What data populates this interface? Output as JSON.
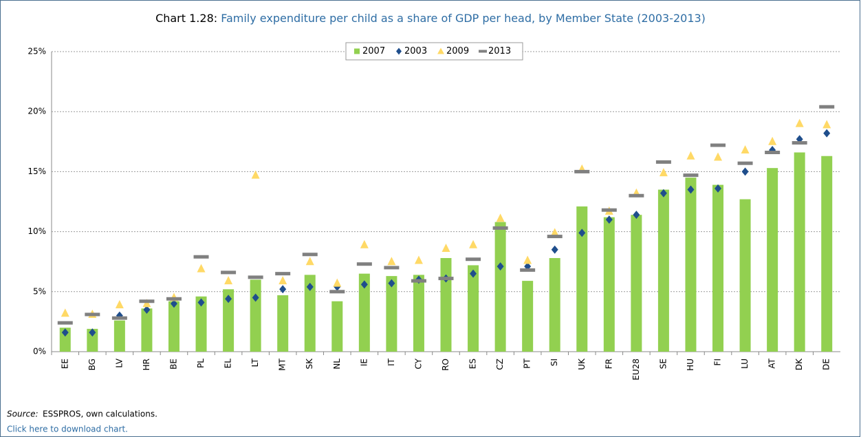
{
  "chart_data": {
    "type": "bar",
    "chart_number": "Chart 1.28",
    "title": "Family expenditure per child as a share of GDP per head, by Member State (2003-2013)",
    "categories": [
      "EE",
      "BG",
      "LV",
      "HR",
      "BE",
      "PL",
      "EL",
      "LT",
      "MT",
      "SK",
      "NL",
      "IE",
      "IT",
      "CY",
      "RO",
      "ES",
      "CZ",
      "PT",
      "SI",
      "UK",
      "FR",
      "EU28",
      "SE",
      "HU",
      "FI",
      "LU",
      "AT",
      "DK",
      "DE"
    ],
    "series": [
      {
        "name": "2007",
        "type": "bar",
        "color": "#92d050",
        "values": [
          2.0,
          1.9,
          2.6,
          3.6,
          4.2,
          4.6,
          5.2,
          6.0,
          4.7,
          6.4,
          4.2,
          6.5,
          6.3,
          6.4,
          7.8,
          7.2,
          10.8,
          5.9,
          7.8,
          12.1,
          11.2,
          11.4,
          13.5,
          14.5,
          13.9,
          12.7,
          15.3,
          16.6,
          16.3
        ]
      },
      {
        "name": "2003",
        "type": "diamond",
        "color": "#1f4e8c",
        "values": [
          1.6,
          1.6,
          3.0,
          3.5,
          4.0,
          4.1,
          4.4,
          4.5,
          5.2,
          5.4,
          5.4,
          5.6,
          5.7,
          6.0,
          6.1,
          6.5,
          7.1,
          7.1,
          8.5,
          9.9,
          11.0,
          11.4,
          13.2,
          13.5,
          13.6,
          15.0,
          16.8,
          17.7,
          18.2
        ]
      },
      {
        "name": "2009",
        "type": "triangle",
        "color": "#ffd966",
        "values": [
          3.2,
          3.1,
          3.9,
          4.0,
          4.5,
          6.9,
          5.9,
          14.7,
          5.9,
          7.5,
          5.7,
          8.9,
          7.5,
          7.6,
          8.6,
          8.9,
          11.1,
          7.6,
          9.9,
          15.2,
          11.7,
          13.2,
          14.9,
          16.3,
          16.2,
          16.8,
          17.5,
          19.0,
          18.9
        ]
      },
      {
        "name": "2013",
        "type": "dash",
        "color": "#808080",
        "values": [
          2.4,
          3.1,
          2.8,
          4.2,
          4.4,
          7.9,
          6.6,
          6.2,
          6.5,
          8.1,
          5.0,
          7.3,
          7.0,
          5.9,
          6.1,
          7.7,
          10.3,
          6.8,
          9.6,
          15.0,
          11.8,
          13.0,
          15.8,
          14.7,
          17.2,
          15.7,
          16.6,
          17.4,
          20.4
        ]
      }
    ],
    "ylim": [
      0,
      25
    ],
    "yticks": [
      {
        "value": 0,
        "label": "0%"
      },
      {
        "value": 5,
        "label": "5%"
      },
      {
        "value": 10,
        "label": "10%"
      },
      {
        "value": 15,
        "label": "15%"
      },
      {
        "value": 20,
        "label": "20%"
      },
      {
        "value": 25,
        "label": "25%"
      }
    ],
    "grid": true,
    "legend_position": "top",
    "source_label": "Source:",
    "source": "ESSPROS, own calculations.",
    "link": "Click here to download chart."
  }
}
